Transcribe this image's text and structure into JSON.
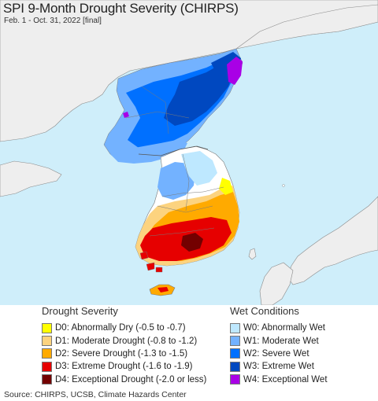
{
  "title": "SPI 9-Month Drought Severity (CHIRPS)",
  "subtitle": "Feb. 1 - Oct. 31, 2022 [final]",
  "source": "Source: CHIRPS, UCSB, Climate Hazards Center",
  "legend": {
    "drought": {
      "heading": "Drought Severity",
      "items": [
        {
          "label": "D0: Abnormally Dry (-0.5 to -0.7)",
          "color": "#ffff00"
        },
        {
          "label": "D1: Moderate Drought (-0.8 to -1.2)",
          "color": "#fcd37f"
        },
        {
          "label": "D2: Severe Drought (-1.3 to -1.5)",
          "color": "#ffaa00"
        },
        {
          "label": "D3: Extreme Drought (-1.6 to -1.9)",
          "color": "#e60000"
        },
        {
          "label": "D4: Exceptional Drought (-2.0 or less)",
          "color": "#730000"
        }
      ]
    },
    "wet": {
      "heading": "Wet Conditions",
      "items": [
        {
          "label": "W0: Abnormally Wet",
          "color": "#bee8ff"
        },
        {
          "label": "W1: Moderate Wet",
          "color": "#73b2ff"
        },
        {
          "label": "W2: Severe Wet",
          "color": "#0070ff"
        },
        {
          "label": "W3: Extreme Wet",
          "color": "#0048c0"
        },
        {
          "label": "W4: Exceptional Wet",
          "color": "#a900e6"
        }
      ]
    }
  },
  "map_colors": {
    "sea": "#cfeefa",
    "land_outside": "#eeeeee",
    "neutral": "#ffffff",
    "border": "#7a7a7a"
  }
}
